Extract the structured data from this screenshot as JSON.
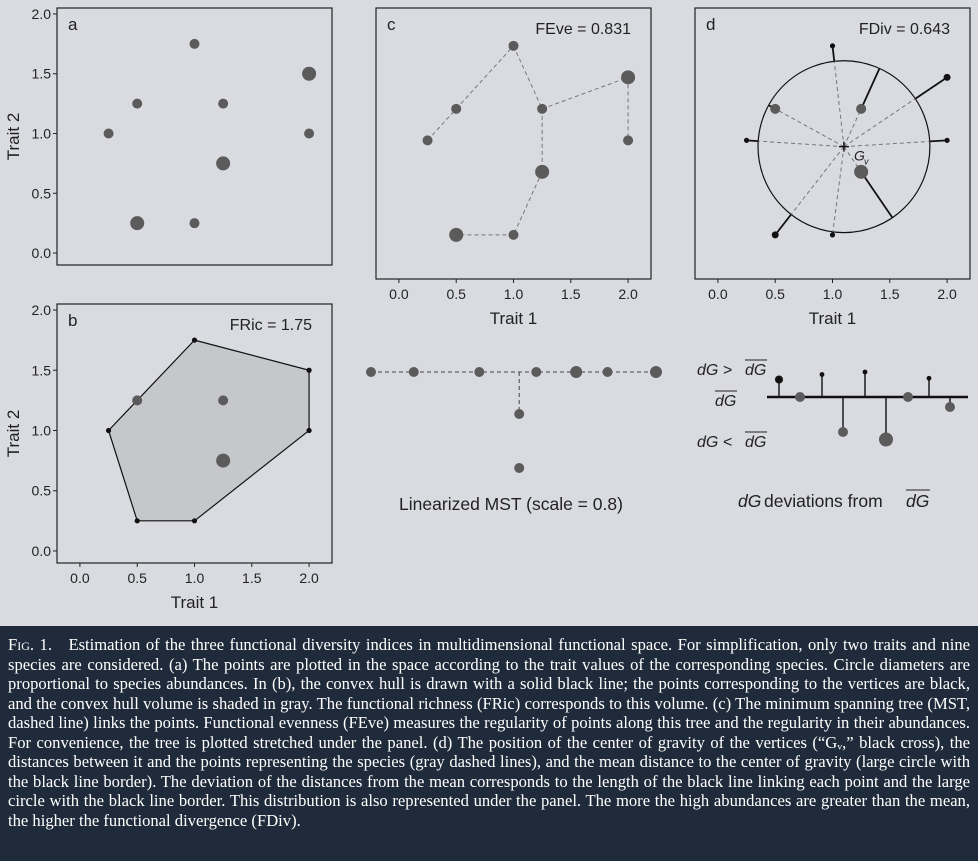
{
  "panels": {
    "a": {
      "letter": "a",
      "xlabel": "",
      "ylabel": "Trait 2"
    },
    "b": {
      "letter": "b",
      "index_label": "FRic = 1.75",
      "xlabel": "Trait 1",
      "ylabel": "Trait 2"
    },
    "c": {
      "letter": "c",
      "index_label": "FEve = 0.831",
      "xlabel": "Trait 1"
    },
    "d": {
      "letter": "d",
      "index_label": "FDiv = 0.643",
      "xlabel": "Trait 1",
      "centroid_label": "G",
      "centroid_sub": "v"
    }
  },
  "ticks": {
    "x": [
      "0.0",
      "0.5",
      "1.0",
      "1.5",
      "2.0"
    ],
    "y": [
      "0.0",
      "0.5",
      "1.0",
      "1.5",
      "2.0"
    ]
  },
  "mst_label": "Linearized MST (scale = 0.8)",
  "dg": {
    "gt": "dG >",
    "gt_bar": "dG",
    "mean": "dG",
    "lt": "dG <",
    "lt_bar": "dG",
    "caption_pre": "dG",
    "caption_mid": " deviations from ",
    "caption_bar": "dG"
  },
  "chart_data": {
    "type": "scatter",
    "x_range": [
      -0.2,
      2.2
    ],
    "y_range": [
      -0.1,
      2.05
    ],
    "species": [
      {
        "x": 0.25,
        "y": 1.0,
        "size": "small",
        "vertex": true
      },
      {
        "x": 0.5,
        "y": 1.25,
        "size": "small",
        "vertex": false
      },
      {
        "x": 1.0,
        "y": 1.75,
        "size": "small",
        "vertex": true
      },
      {
        "x": 1.25,
        "y": 1.25,
        "size": "small",
        "vertex": false
      },
      {
        "x": 2.0,
        "y": 1.5,
        "size": "large",
        "vertex": true
      },
      {
        "x": 2.0,
        "y": 1.0,
        "size": "small",
        "vertex": true
      },
      {
        "x": 1.25,
        "y": 0.75,
        "size": "large",
        "vertex": false
      },
      {
        "x": 0.5,
        "y": 0.25,
        "size": "large",
        "vertex": true
      },
      {
        "x": 1.0,
        "y": 0.25,
        "size": "small",
        "vertex": true
      }
    ],
    "hull": [
      [
        1.0,
        1.75
      ],
      [
        2.0,
        1.5
      ],
      [
        2.0,
        1.0
      ],
      [
        1.0,
        0.25
      ],
      [
        0.5,
        0.25
      ],
      [
        0.25,
        1.0
      ]
    ],
    "mst_edges": [
      [
        0,
        1
      ],
      [
        1,
        2
      ],
      [
        2,
        3
      ],
      [
        3,
        4
      ],
      [
        4,
        5
      ],
      [
        3,
        6
      ],
      [
        6,
        8
      ],
      [
        8,
        7
      ]
    ],
    "centroid": [
      1.1,
      0.95
    ],
    "fdiv_circle_radius": 0.75,
    "dg_deviations": [
      {
        "dev": 0.7,
        "size": "small"
      },
      {
        "dev": 0.0,
        "size": "small"
      },
      {
        "dev": 0.9,
        "size": "small"
      },
      {
        "dev": -1.4,
        "size": "small"
      },
      {
        "dev": 1.0,
        "size": "small"
      },
      {
        "dev": -1.7,
        "size": "large"
      },
      {
        "dev": 0.0,
        "size": "small"
      },
      {
        "dev": 0.75,
        "size": "small"
      },
      {
        "dev": -0.4,
        "size": "small"
      }
    ],
    "mst_linear": [
      {
        "pos": 0.0,
        "offset": 0.0,
        "size": "small"
      },
      {
        "pos": 0.15,
        "offset": 0.0,
        "size": "small"
      },
      {
        "pos": 0.38,
        "offset": 0.0,
        "size": "small"
      },
      {
        "pos": 0.58,
        "offset": 0.0,
        "size": "small"
      },
      {
        "pos": 0.72,
        "offset": 0.0,
        "size": "large"
      },
      {
        "pos": 0.83,
        "offset": 0.0,
        "size": "small"
      },
      {
        "pos": 1.0,
        "offset": 0.0,
        "size": "large"
      },
      {
        "pos": 0.58,
        "offset": 1.0,
        "size": "small"
      },
      {
        "pos": 0.58,
        "offset": 2.2,
        "size": "small"
      }
    ]
  },
  "caption": {
    "fig": "Fig. 1.",
    "text": "   Estimation of the three functional diversity indices in multidimensional functional space. For simplification, only two traits and nine species are considered. (a) The points are plotted in the space according to the trait values of the corresponding species. Circle diameters are proportional to species abundances. In (b), the convex hull is drawn with a solid black line; the points corresponding to the vertices are black, and the convex hull volume is shaded in gray. The functional richness (FRic) corresponds to this volume. (c) The minimum spanning tree (MST, dashed line) links the points. Functional evenness (FEve) measures the regularity of points along this tree and the regularity in their abundances. For convenience, the tree is plotted stretched under the panel. (d) The position of the center of gravity of the vertices (“Gᵥ,” black cross), the distances between it and the points representing the species (gray dashed lines), and the mean distance to the center of gravity (large circle with the black line border). The deviation of the distances from the mean corresponds to the length of the black line linking each point and the large circle with the black line border. This distribution is also represented under the panel. The more the high abundances are greater than the mean, the higher the functional divergence (FDiv)."
  },
  "colors": {
    "point": "#5b5b5b",
    "vertex": "#111111",
    "hull_fill": "#c6c7cb",
    "mst": "#777777",
    "panel_bg": "#d9dbe0"
  }
}
